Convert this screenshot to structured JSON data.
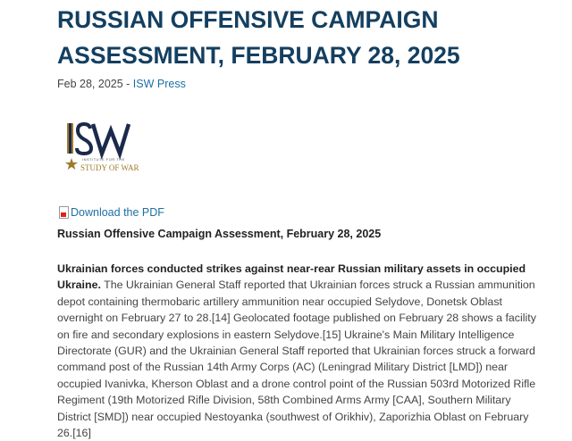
{
  "article": {
    "title": "RUSSIAN OFFENSIVE CAMPAIGN ASSESSMENT, FEBRUARY 28, 2025",
    "date": "Feb 28, 2025",
    "separator": " - ",
    "author": "ISW Press",
    "logo": {
      "text": "ISW",
      "tagline_small": "INSTITUTE FOR THE",
      "tagline": "STUDY OF WAR"
    },
    "pdf_link": "Download the PDF",
    "subtitle": "Russian Offensive Campaign Assessment, February 28, 2025",
    "paragraph": {
      "lead": "Ukrainian forces conducted strikes against near-rear Russian military assets in occupied Ukraine.",
      "text": " The Ukrainian General Staff reported that Ukrainian forces struck a Russian ammunition depot containing thermobaric artillery ammunition near occupied Selydove, Donetsk Oblast overnight on February 27 to 28.[14] Geolocated footage published on February 28 shows a facility on fire and secondary explosions in eastern Selydove.[15] Ukraine's Main Military Intelligence Directorate (GUR) and the Ukrainian General Staff reported that Ukrainian forces struck a forward command post of the Russian 14th Army Corps (AC) (Leningrad Military District [LMD]) near occupied Ivanivka, Kherson Oblast and a drone control point of the Russian 503rd Motorized Rifle Regiment (19th Motorized Rifle Division, 58th Combined Arms Army [CAA], Southern Military District [SMD]) near occupied Nestoyanka (southwest of Orikhiv), Zaporizhia Oblast on February 26.[16]"
    }
  },
  "colors": {
    "title": "#143f60",
    "link": "#1d6fa5",
    "logo_navy": "#1b2a4a",
    "logo_gold": "#a07a2c"
  }
}
